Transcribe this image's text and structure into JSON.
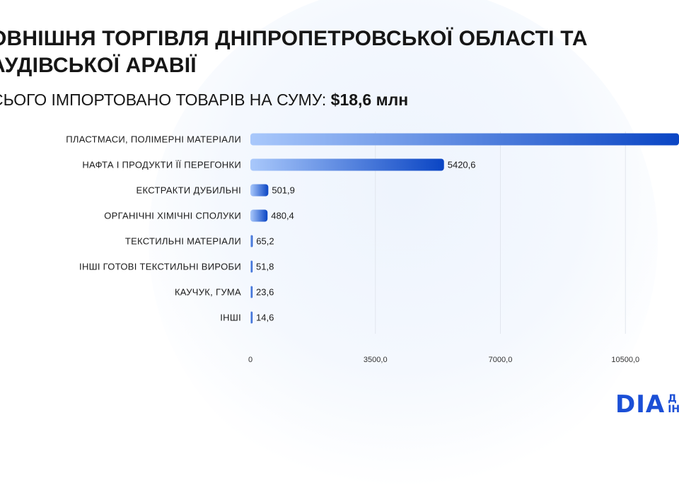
{
  "title": "ОВНІШНЯ ТОРГІВЛЯ ДНІПРОПЕТРОВСЬКОЇ ОБЛАСТІ ТА АУДІВСЬКОЇ АРАВІЇ",
  "subtitle": {
    "text": "СЬОГО ІМПОРТОВАНО ТОВАРІВ НА СУМУ:",
    "amount": "$18,6 млн"
  },
  "logo": {
    "main": "DIA",
    "side_1": "Д",
    "side_2": "ІН"
  },
  "colors": {
    "bar_start": "#a9c8fb",
    "bar_end": "#0a45c4",
    "grid": "#e2e6ee",
    "brand": "#1b4fd6"
  },
  "chart_data": {
    "type": "bar",
    "orientation": "horizontal",
    "categories": [
      "ПЛАСТМАСИ, ПОЛІМЕРНІ МАТЕРІАЛИ",
      "НАФТА І ПРОДУКТИ ЇЇ ПЕРЕГОНКИ",
      "ЕКСТРАКТИ ДУБИЛЬНІ",
      "ОРГАНІЧНІ ХІМІЧНІ СПОЛУКИ",
      "ТЕКСТИЛЬНІ МАТЕРІАЛИ",
      "ІНШІ ГОТОВІ ТЕКСТИЛЬНІ ВИРОБИ",
      "КАУЧУК, ГУМА",
      "ІНШІ"
    ],
    "values": [
      12000,
      5420.6,
      501.9,
      480.4,
      65.2,
      51.8,
      23.6,
      14.6
    ],
    "value_labels": [
      "",
      "5420,6",
      "501,9",
      "480,4",
      "65,2",
      "51,8",
      "23,6",
      "14,6"
    ],
    "x_ticks": [
      "0",
      "3500,0",
      "7000,0",
      "10500,0"
    ],
    "x_tick_values": [
      0,
      3500,
      7000,
      10500
    ],
    "xlim": [
      0,
      12000
    ],
    "grid": true
  }
}
